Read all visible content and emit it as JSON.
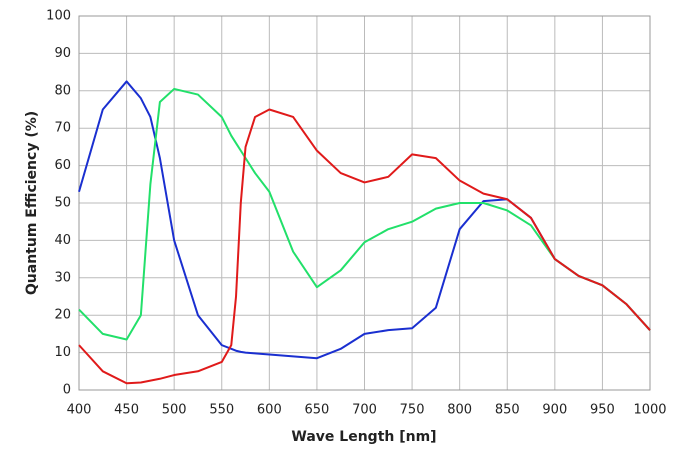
{
  "chart_data": {
    "type": "line",
    "x_label": "Wave Length [nm]",
    "y_label": "Quantum Efficiency (%)",
    "x": [
      400,
      425,
      450,
      465,
      475,
      485,
      500,
      525,
      550,
      560,
      565,
      570,
      575,
      585,
      600,
      625,
      650,
      675,
      700,
      725,
      750,
      775,
      800,
      825,
      850,
      875,
      900,
      925,
      950,
      975,
      1000
    ],
    "series": [
      {
        "color": "#1a2fd0",
        "values": [
          53,
          75,
          82.5,
          78,
          73,
          62,
          40,
          20,
          12,
          11,
          10.5,
          10.2,
          10,
          9.8,
          9.5,
          9,
          8.5,
          11,
          15,
          16,
          16.5,
          22,
          43,
          50.5,
          51,
          46,
          35,
          30.5,
          28,
          23,
          16
        ]
      },
      {
        "color": "#22e06a",
        "values": [
          21.5,
          15,
          13.5,
          20,
          55,
          77,
          80.5,
          79,
          73,
          68,
          66,
          64,
          62,
          58,
          53,
          37,
          27.5,
          32,
          39.5,
          43,
          45,
          48.5,
          50,
          50,
          48,
          44,
          35,
          30.5,
          28,
          23,
          16
        ]
      },
      {
        "color": "#e01a1a",
        "values": [
          12,
          5,
          1.8,
          2,
          2.5,
          3,
          4,
          5,
          7.5,
          12,
          25,
          50,
          65,
          73,
          75,
          73,
          64,
          58,
          55.5,
          57,
          63,
          62,
          56,
          52.5,
          51,
          46,
          35,
          30.5,
          28,
          23,
          16
        ]
      }
    ],
    "xlim": [
      400,
      1000
    ],
    "ylim": [
      0,
      100
    ],
    "xticks": [
      400,
      450,
      500,
      550,
      600,
      650,
      700,
      750,
      800,
      850,
      900,
      950,
      1000
    ],
    "yticks": [
      0,
      10,
      20,
      30,
      40,
      50,
      60,
      70,
      80,
      90,
      100
    ],
    "grid": true
  }
}
